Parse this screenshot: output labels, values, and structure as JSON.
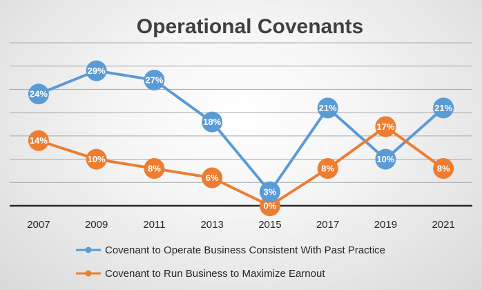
{
  "chart_data": {
    "type": "line",
    "title": "Operational Covenants",
    "xlabel": "",
    "ylabel": "",
    "categories": [
      "2007",
      "2009",
      "2011",
      "2013",
      "2015",
      "2017",
      "2019",
      "2021"
    ],
    "series": [
      {
        "name": "Covenant to Operate Business Consistent With Past Practice",
        "values": [
          24,
          29,
          27,
          18,
          3,
          21,
          10,
          21
        ],
        "labels": [
          "24%",
          "29%",
          "27%",
          "18%",
          "3%",
          "21%",
          "10%",
          "21%"
        ],
        "color": "#5b9bd5"
      },
      {
        "name": "Covenant to Run Business to Maximize Earnout",
        "values": [
          14,
          10,
          8,
          6,
          0,
          8,
          17,
          8
        ],
        "labels": [
          "14%",
          "10%",
          "8%",
          "6%",
          "0%",
          "8%",
          "17%",
          "8%"
        ],
        "color": "#ed7d31"
      }
    ],
    "ylim": [
      0,
      35
    ],
    "y_gridlines": [
      0,
      5,
      10,
      15,
      20,
      25,
      30,
      35
    ],
    "grid": true,
    "legend_position": "bottom",
    "axis_line_color": "#262626",
    "gridline_color": "#a6a6a6"
  }
}
